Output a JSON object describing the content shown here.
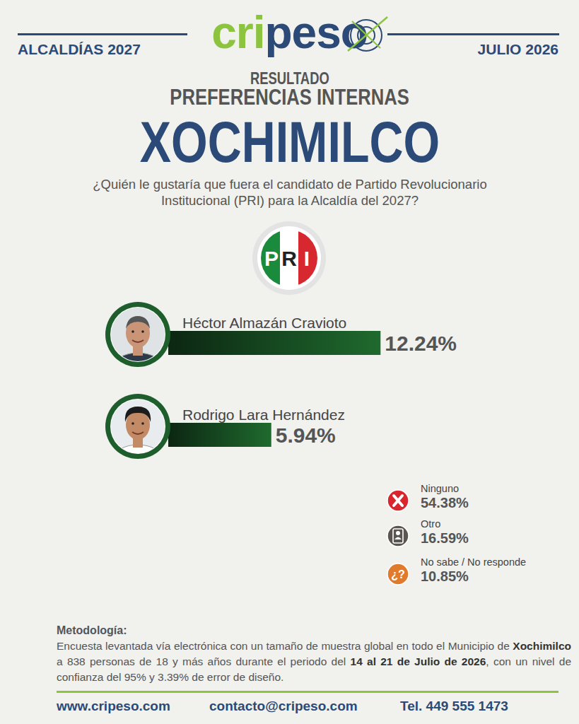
{
  "header": {
    "left": "ALCALDÍAS 2027",
    "logo": "cripeso",
    "right": "JULIO 2026",
    "kicker": "RESULTADO",
    "subtitle": "PREFERENCIAS INTERNAS",
    "title": "XOCHIMILCO",
    "question": "¿Quién le gustaría que fuera el candidato de Partido Revolucionario Institucional (PRI) para la Alcaldía del 2027?",
    "party": "PRI"
  },
  "chart_data": {
    "type": "bar",
    "orientation": "horizontal",
    "categories": [
      "Héctor Almazán Cravioto",
      "Rodrigo Lara Hernández"
    ],
    "values": [
      12.24,
      5.94
    ],
    "value_labels": [
      "12.24%",
      "5.94%"
    ],
    "color": "#1f6a2e",
    "xlim": [
      0,
      15
    ],
    "data_labels": true,
    "tick_labels": false,
    "grid": false
  },
  "other_answers": [
    {
      "label": "Ninguno",
      "value": 54.38,
      "value_label": "54.38%",
      "color": "#d9262e"
    },
    {
      "label": "Otro",
      "value": 16.59,
      "value_label": "16.59%",
      "color": "#5a5550"
    },
    {
      "label": "No sabe / No responde",
      "value": 10.85,
      "value_label": "10.85%",
      "color": "#e07a2c",
      "icon_text": "¿?"
    }
  ],
  "methodology": {
    "heading": "Metodología:",
    "parts": [
      {
        "text": "Encuesta levantada vía electrónica con un tamaño de muestra global en todo el Municipio de ",
        "bold": false
      },
      {
        "text": "Xochimilco",
        "bold": true
      },
      {
        "text": " a 838 personas de 18 y más años durante el periodo del ",
        "bold": false
      },
      {
        "text": "14 al 21 de Julio de 2026",
        "bold": true
      },
      {
        "text": ", con un nivel de confianza del 95% y 3.39% de error de diseño.",
        "bold": false
      }
    ]
  },
  "footer": [
    "www.cripeso.com",
    "contacto@cripeso.com",
    "Tel. 449 555 1473"
  ]
}
